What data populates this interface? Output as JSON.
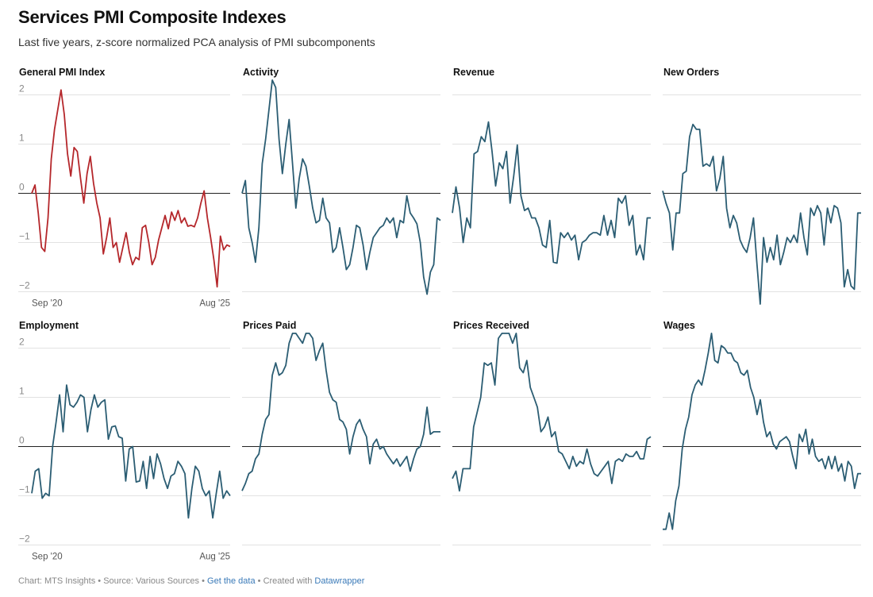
{
  "header": {
    "title": "Services PMI Composite Indexes",
    "subtitle": "Last five years, z-score normalized PCA analysis of PMI subcomponents"
  },
  "footer": {
    "chart_credit": "Chart: MTS Insights",
    "source": "Source: Various Sources",
    "get_data": "Get the data",
    "created_with": "Created with",
    "tool": "Datawrapper",
    "separator": "•"
  },
  "chart_data": {
    "type": "line",
    "layout": "small-multiples",
    "yticks": [
      2,
      1,
      0,
      -1,
      -2
    ],
    "ylim": [
      -2.3,
      2.3
    ],
    "xticks": [
      "Sep '20",
      "Aug '25"
    ],
    "x_start": "Sep 2020",
    "x_end": "Aug 2025",
    "colors": {
      "highlight": "#b5272b",
      "series": "#2b5d73"
    },
    "panels": [
      {
        "name": "General PMI Index",
        "color": "#b5272b",
        "values": [
          0,
          0.17,
          -0.4,
          -1.1,
          -1.18,
          -0.5,
          0.7,
          1.3,
          1.7,
          2.1,
          1.6,
          0.8,
          0.35,
          0.93,
          0.85,
          0.3,
          -0.2,
          0.4,
          0.75,
          0.2,
          -0.2,
          -0.5,
          -1.23,
          -0.9,
          -0.5,
          -1.1,
          -1.0,
          -1.4,
          -1.1,
          -0.8,
          -1.2,
          -1.45,
          -1.3,
          -1.35,
          -0.7,
          -0.65,
          -1.0,
          -1.45,
          -1.3,
          -0.95,
          -0.7,
          -0.45,
          -0.72,
          -0.38,
          -0.55,
          -0.35,
          -0.6,
          -0.5,
          -0.67,
          -0.65,
          -0.68,
          -0.5,
          -0.2,
          0.05,
          -0.5,
          -0.9,
          -1.35,
          -1.9,
          -0.87,
          -1.15,
          -1.05,
          -1.08
        ]
      },
      {
        "name": "Activity",
        "color": "#2b5d73",
        "values": [
          0,
          0.26,
          -0.7,
          -1.0,
          -1.4,
          -0.7,
          0.6,
          1.1,
          1.7,
          2.3,
          2.15,
          1.1,
          0.4,
          1.0,
          1.5,
          0.6,
          -0.3,
          0.3,
          0.7,
          0.55,
          0.15,
          -0.3,
          -0.6,
          -0.55,
          -0.1,
          -0.5,
          -0.6,
          -1.2,
          -1.1,
          -0.7,
          -1.1,
          -1.55,
          -1.45,
          -1.1,
          -0.65,
          -0.7,
          -1.05,
          -1.55,
          -1.2,
          -0.9,
          -0.8,
          -0.7,
          -0.65,
          -0.5,
          -0.6,
          -0.5,
          -0.9,
          -0.55,
          -0.6,
          -0.05,
          -0.4,
          -0.5,
          -0.62,
          -1.0,
          -1.7,
          -2.05,
          -1.6,
          -1.45,
          -0.5,
          -0.55
        ]
      },
      {
        "name": "Revenue",
        "color": "#2b5d73",
        "values": [
          -0.4,
          0.13,
          -0.3,
          -1.0,
          -0.5,
          -0.7,
          0.8,
          0.85,
          1.15,
          1.05,
          1.45,
          0.85,
          0.15,
          0.62,
          0.5,
          0.85,
          -0.2,
          0.35,
          0.98,
          -0.05,
          -0.35,
          -0.3,
          -0.5,
          -0.5,
          -0.7,
          -1.05,
          -1.1,
          -0.55,
          -1.4,
          -1.42,
          -0.8,
          -0.9,
          -0.8,
          -0.95,
          -0.85,
          -1.35,
          -1.0,
          -0.95,
          -0.85,
          -0.8,
          -0.8,
          -0.85,
          -0.45,
          -0.85,
          -0.55,
          -0.9,
          -0.1,
          -0.2,
          -0.05,
          -0.65,
          -0.45,
          -1.25,
          -1.05,
          -1.35,
          -0.5,
          -0.5
        ]
      },
      {
        "name": "New Orders",
        "color": "#2b5d73",
        "values": [
          0.05,
          -0.2,
          -0.4,
          -1.15,
          -0.4,
          -0.4,
          0.4,
          0.45,
          1.15,
          1.4,
          1.3,
          1.3,
          0.55,
          0.6,
          0.55,
          0.75,
          0.05,
          0.3,
          0.75,
          -0.3,
          -0.7,
          -0.45,
          -0.6,
          -0.95,
          -1.1,
          -1.2,
          -0.9,
          -0.5,
          -1.4,
          -2.25,
          -0.9,
          -1.4,
          -1.1,
          -1.35,
          -0.85,
          -1.45,
          -1.2,
          -0.9,
          -1.0,
          -0.85,
          -1.0,
          -0.4,
          -0.9,
          -1.25,
          -0.3,
          -0.45,
          -0.25,
          -0.4,
          -1.05,
          -0.3,
          -0.6,
          -0.25,
          -0.3,
          -0.6,
          -1.9,
          -1.55,
          -1.88,
          -1.95,
          -0.4,
          -0.4
        ]
      },
      {
        "name": "Employment",
        "color": "#2b5d73",
        "values": [
          -0.95,
          -0.5,
          -0.45,
          -1.05,
          -0.95,
          -1.0,
          0,
          0.5,
          1.05,
          0.3,
          1.25,
          0.85,
          0.8,
          0.9,
          1.05,
          1.0,
          0.3,
          0.75,
          1.05,
          0.8,
          0.9,
          0.95,
          0.15,
          0.4,
          0.42,
          0.2,
          0.17,
          -0.7,
          -0.05,
          0,
          -0.72,
          -0.7,
          -0.3,
          -0.85,
          -0.2,
          -0.65,
          -0.15,
          -0.35,
          -0.65,
          -0.85,
          -0.6,
          -0.55,
          -0.3,
          -0.4,
          -0.55,
          -1.45,
          -0.85,
          -0.4,
          -0.5,
          -0.85,
          -1.0,
          -0.9,
          -1.45,
          -0.95,
          -0.5,
          -1.05,
          -0.9,
          -1.0
        ]
      },
      {
        "name": "Prices Paid",
        "color": "#2b5d73",
        "values": [
          -0.9,
          -0.75,
          -0.55,
          -0.5,
          -0.25,
          -0.15,
          0.25,
          0.55,
          0.65,
          1.45,
          1.7,
          1.45,
          1.5,
          1.65,
          2.1,
          2.3,
          2.3,
          2.2,
          2.1,
          2.3,
          2.3,
          2.2,
          1.75,
          1.95,
          2.1,
          1.55,
          1.1,
          0.95,
          0.9,
          0.55,
          0.5,
          0.35,
          -0.15,
          0.2,
          0.45,
          0.55,
          0.35,
          0.2,
          -0.35,
          0.05,
          0.15,
          -0.05,
          0,
          -0.15,
          -0.25,
          -0.35,
          -0.25,
          -0.4,
          -0.3,
          -0.2,
          -0.5,
          -0.25,
          -0.05,
          0,
          0.25,
          0.8,
          0.25,
          0.3,
          0.3,
          0.3
        ]
      },
      {
        "name": "Prices Received",
        "color": "#2b5d73",
        "values": [
          -0.65,
          -0.5,
          -0.9,
          -0.45,
          -0.45,
          -0.45,
          0.4,
          0.7,
          1.0,
          1.7,
          1.65,
          1.7,
          1.25,
          2.2,
          2.3,
          2.3,
          2.3,
          2.1,
          2.3,
          1.6,
          1.5,
          1.75,
          1.2,
          1.0,
          0.8,
          0.3,
          0.4,
          0.6,
          0.2,
          0.3,
          -0.1,
          -0.15,
          -0.3,
          -0.45,
          -0.2,
          -0.4,
          -0.3,
          -0.35,
          -0.05,
          -0.35,
          -0.55,
          -0.6,
          -0.5,
          -0.4,
          -0.3,
          -0.75,
          -0.3,
          -0.25,
          -0.3,
          -0.15,
          -0.2,
          -0.2,
          -0.1,
          -0.25,
          -0.25,
          0.15,
          0.2
        ]
      },
      {
        "name": "Wages",
        "color": "#2b5d73",
        "values": [
          -1.68,
          -1.68,
          -1.35,
          -1.68,
          -1.1,
          -0.8,
          -0.05,
          0.35,
          0.6,
          1.05,
          1.25,
          1.35,
          1.25,
          1.55,
          1.9,
          2.3,
          1.75,
          1.7,
          2.05,
          2.0,
          1.9,
          1.9,
          1.75,
          1.7,
          1.5,
          1.45,
          1.55,
          1.2,
          1.0,
          0.65,
          0.95,
          0.5,
          0.2,
          0.3,
          0.05,
          -0.05,
          0.1,
          0.15,
          0.2,
          0.1,
          -0.2,
          -0.45,
          0.25,
          0.1,
          0.35,
          -0.15,
          0.15,
          -0.2,
          -0.3,
          -0.25,
          -0.45,
          -0.2,
          -0.45,
          -0.2,
          -0.5,
          -0.35,
          -0.7,
          -0.3,
          -0.4,
          -0.85,
          -0.55,
          -0.55
        ]
      }
    ]
  }
}
